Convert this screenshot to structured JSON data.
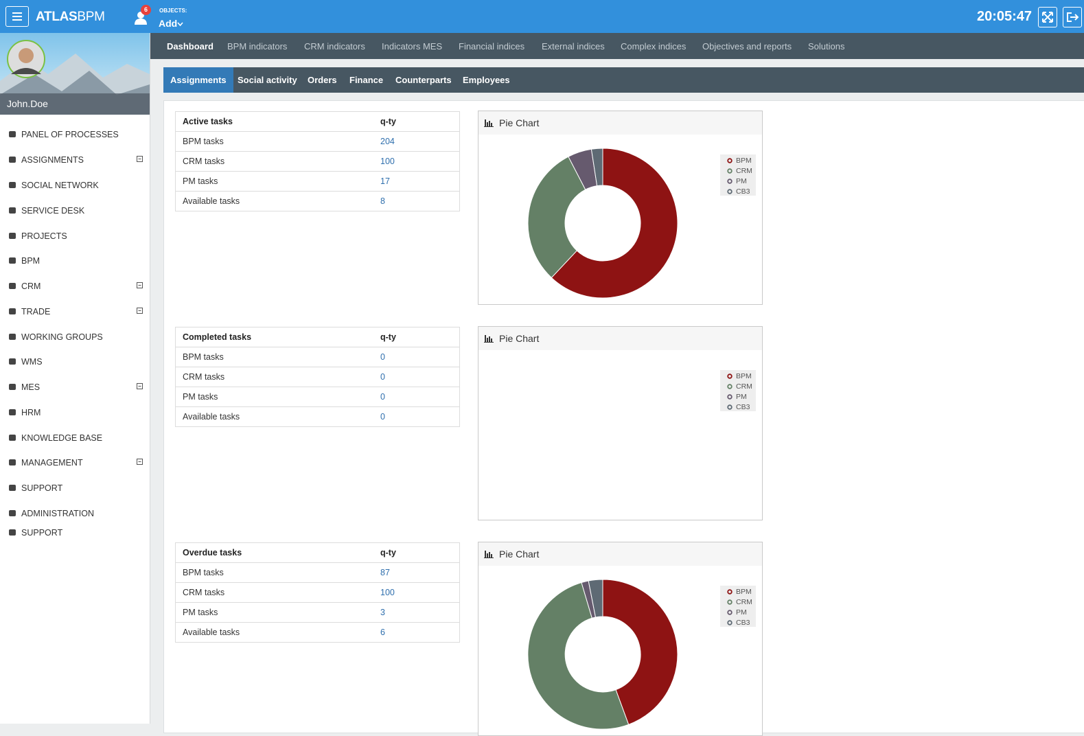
{
  "header": {
    "brand": {
      "bold": "ATLAS",
      "light": "BPM"
    },
    "notifications": 6,
    "objects_label": "OBJECTS:",
    "add": "Add",
    "clock": "20:05:47"
  },
  "user": {
    "name": "John.Doe"
  },
  "sidebar": {
    "items": [
      {
        "label": "PANEL OF PROCESSES",
        "expandable": false
      },
      {
        "label": "ASSIGNMENTS",
        "expandable": true
      },
      {
        "label": "SOCIAL NETWORK",
        "expandable": false
      },
      {
        "label": "SERVICE DESK",
        "expandable": false
      },
      {
        "label": "PROJECTS",
        "expandable": false
      },
      {
        "label": "BPM",
        "expandable": false
      },
      {
        "label": "CRM",
        "expandable": true
      },
      {
        "label": "TRADE",
        "expandable": true
      },
      {
        "label": "WORKING GROUPS",
        "expandable": false
      },
      {
        "label": "WMS",
        "expandable": false
      },
      {
        "label": "MES",
        "expandable": true
      },
      {
        "label": "HRM",
        "expandable": false
      },
      {
        "label": "KNOWLEDGE BASE",
        "expandable": false
      },
      {
        "label": "MANAGEMENT",
        "expandable": true
      },
      {
        "label": "SUPPORT",
        "expandable": false
      },
      {
        "label": "ADMINISTRATION",
        "expandable": false
      },
      {
        "label": "SUPPORT",
        "expandable": false
      }
    ]
  },
  "top_nav": {
    "items": [
      "Dashboard",
      "BPM indicators",
      "CRM indicators",
      "Indicators MES",
      "Financial indices",
      "External indices",
      "Complex indices",
      "Objectives and reports",
      "Solutions"
    ],
    "active": 0
  },
  "sub_nav": {
    "items": [
      "Assignments",
      "Social activity",
      "Orders",
      "Finance",
      "Counterparts",
      "Employees"
    ],
    "active": 0
  },
  "sections": [
    {
      "table": {
        "columns": [
          "Active tasks",
          "q-ty"
        ],
        "rows": [
          [
            "BPM tasks",
            204
          ],
          [
            "CRM tasks",
            100
          ],
          [
            "PM tasks",
            17
          ],
          [
            "Available tasks",
            8
          ]
        ]
      },
      "chart": {
        "type": "pie",
        "title": "Pie Chart",
        "legend": [
          {
            "name": "BPM",
            "color": "#8e1313"
          },
          {
            "name": "CRM",
            "color": "#648066"
          },
          {
            "name": "PM",
            "color": "#665a6e"
          },
          {
            "name": "CB3",
            "color": "#5e6a74"
          }
        ]
      }
    },
    {
      "table": {
        "columns": [
          "Completed tasks",
          "q-ty"
        ],
        "rows": [
          [
            "BPM tasks",
            0
          ],
          [
            "CRM tasks",
            0
          ],
          [
            "PM tasks",
            0
          ],
          [
            "Available tasks",
            0
          ]
        ]
      },
      "chart": {
        "type": "pie",
        "title": "Pie Chart",
        "legend": [
          {
            "name": "BPM",
            "color": "#8e1313"
          },
          {
            "name": "CRM",
            "color": "#648066"
          },
          {
            "name": "PM",
            "color": "#665a6e"
          },
          {
            "name": "CB3",
            "color": "#5e6a74"
          }
        ]
      }
    },
    {
      "table": {
        "columns": [
          "Overdue tasks",
          "q-ty"
        ],
        "rows": [
          [
            "BPM tasks",
            87
          ],
          [
            "CRM tasks",
            100
          ],
          [
            "PM tasks",
            3
          ],
          [
            "Available tasks",
            6
          ]
        ]
      },
      "chart": {
        "type": "pie",
        "title": "Pie Chart",
        "legend": [
          {
            "name": "BPM",
            "color": "#8e1313"
          },
          {
            "name": "CRM",
            "color": "#648066"
          },
          {
            "name": "PM",
            "color": "#665a6e"
          },
          {
            "name": "CB3",
            "color": "#5e6a74"
          }
        ]
      }
    }
  ]
}
